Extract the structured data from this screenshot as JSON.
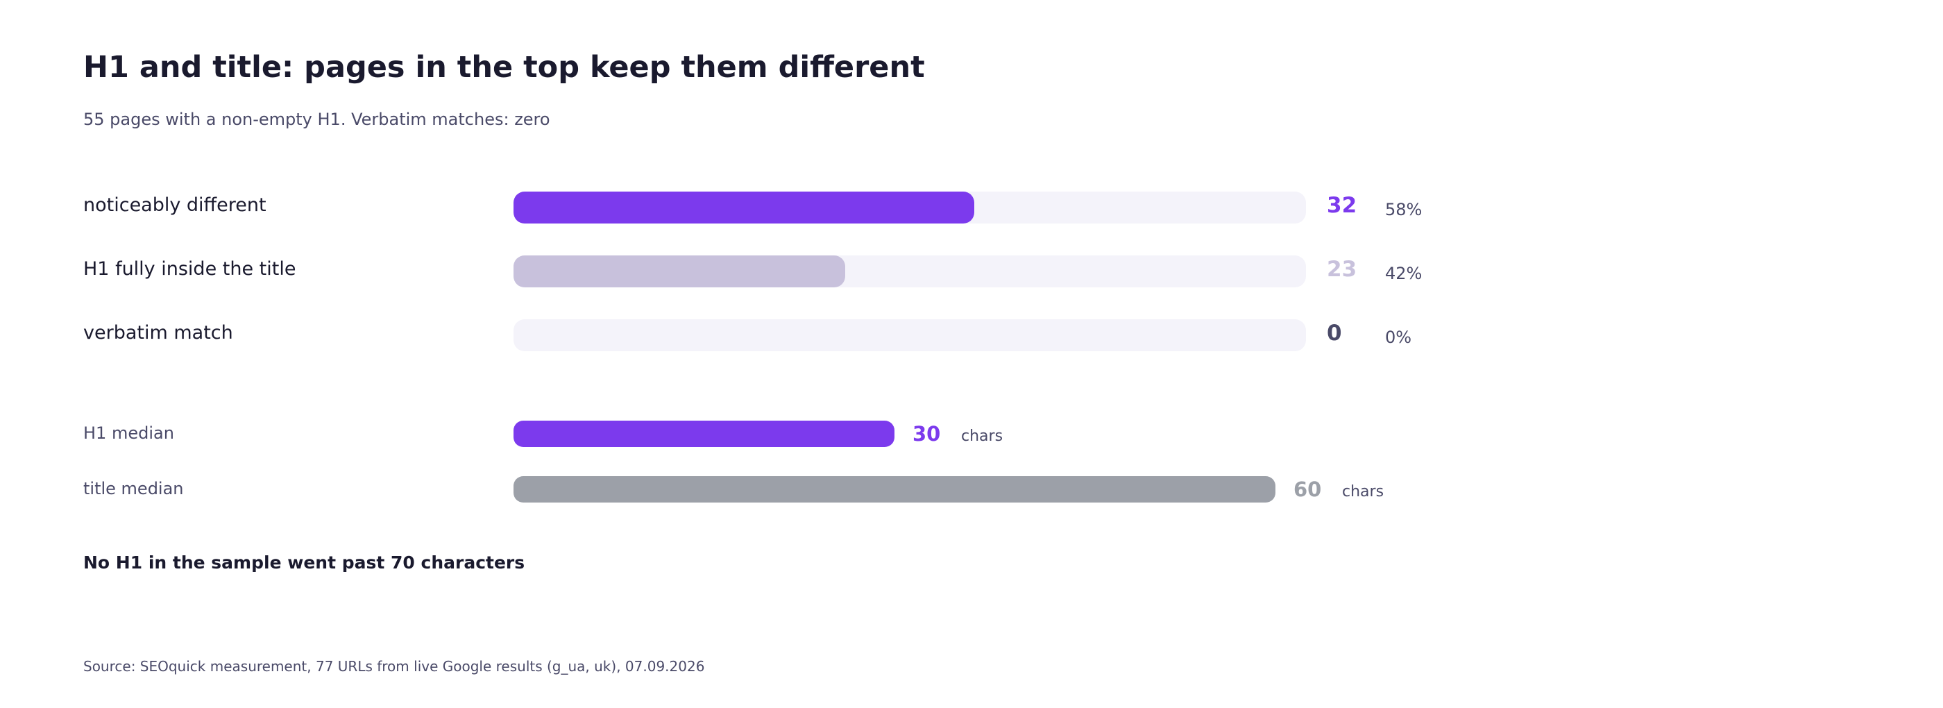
{
  "chart_data": {
    "type": "bar",
    "title": "H1 and title: pages in the top keep them different",
    "subtitle": "55 pages with a non-empty H1. Verbatim matches: zero",
    "comparison": {
      "total": 55,
      "rows": [
        {
          "label": "noticeably different",
          "value": 32,
          "value_label": "32",
          "percent_label": "58%",
          "color": "#7c3aed"
        },
        {
          "label": "H1 fully inside the title",
          "value": 23,
          "value_label": "23",
          "percent_label": "42%",
          "color": "#c8c1dc"
        },
        {
          "label": "verbatim match",
          "value": 0,
          "value_label": "0",
          "percent_label": "0%",
          "color": "#4a4a68"
        }
      ]
    },
    "medians": {
      "max": 60,
      "unit": "chars",
      "rows": [
        {
          "label": "H1 median",
          "value": 30,
          "value_label": "30",
          "color": "#7c3aed"
        },
        {
          "label": "title median",
          "value": 60,
          "value_label": "60",
          "color": "#9ca0a8"
        }
      ]
    },
    "note": "No H1 in the sample went past 70 characters",
    "source": "Source: SEOquick measurement, 77 URLs from live Google results (g_ua, uk), 07.09.2026",
    "colors": {
      "track": "#f4f3fa",
      "text": "#1a1a2e",
      "muted_text": "#4a4a68"
    }
  }
}
